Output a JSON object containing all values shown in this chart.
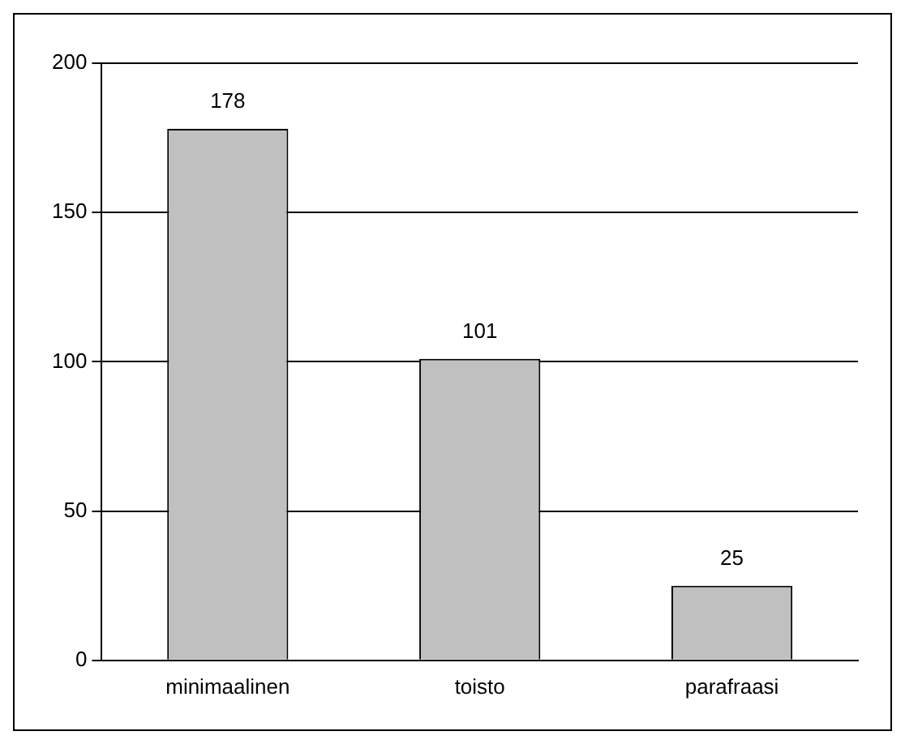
{
  "chart_data": {
    "type": "bar",
    "categories": [
      "minimaalinen",
      "toisto",
      "parafraasi"
    ],
    "values": [
      178,
      101,
      25
    ],
    "color": "#c0c0c0",
    "ylim": [
      0,
      200
    ],
    "yticks": [
      0,
      50,
      100,
      150,
      200
    ],
    "grid": "y",
    "data_labels": true,
    "legend": false
  }
}
